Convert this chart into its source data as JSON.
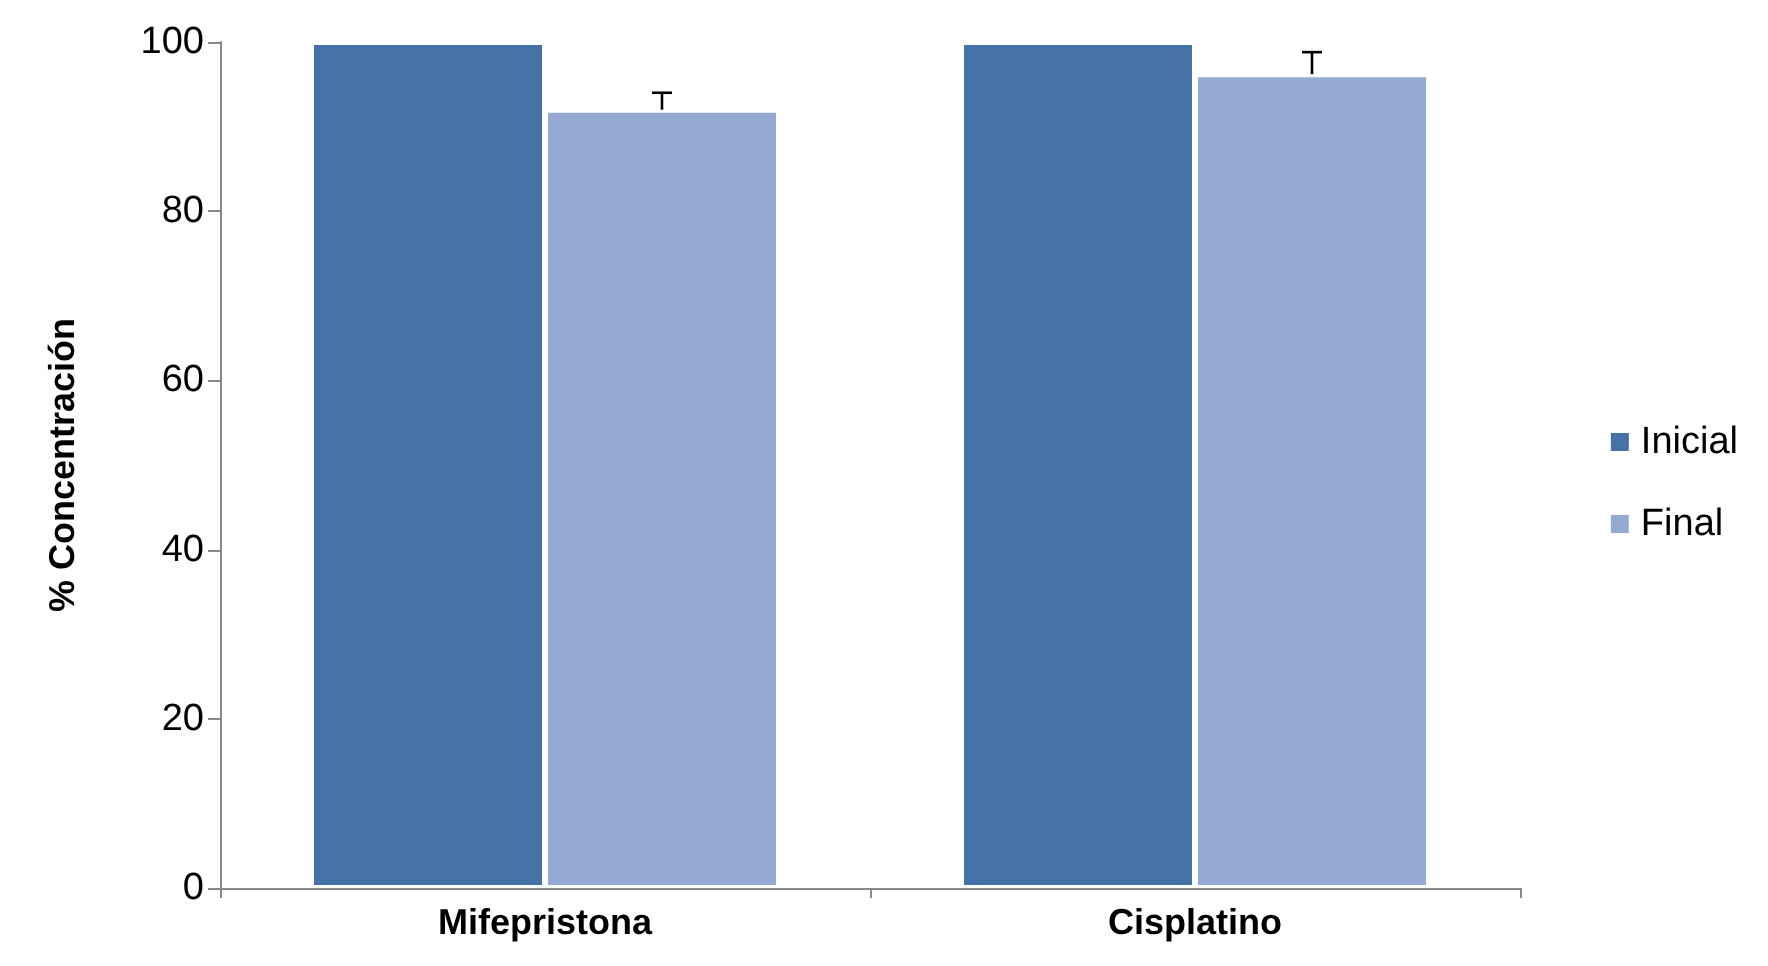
{
  "chart_data": {
    "type": "bar",
    "ylabel": "% Concentración",
    "categories": [
      "Mifepristona",
      "Cisplatino"
    ],
    "series": [
      {
        "name": "Inicial",
        "color": "#4572a7",
        "values": [
          100,
          100
        ]
      },
      {
        "name": "Final",
        "color": "#95aad2",
        "values": [
          92,
          96.2
        ],
        "errors": [
          [
            92,
            94
          ],
          [
            96.2,
            98.8
          ]
        ]
      }
    ],
    "ylim": [
      0,
      100
    ],
    "yticks": [
      0,
      20,
      40,
      60,
      80,
      100
    ],
    "grid": false,
    "legend": "right"
  }
}
